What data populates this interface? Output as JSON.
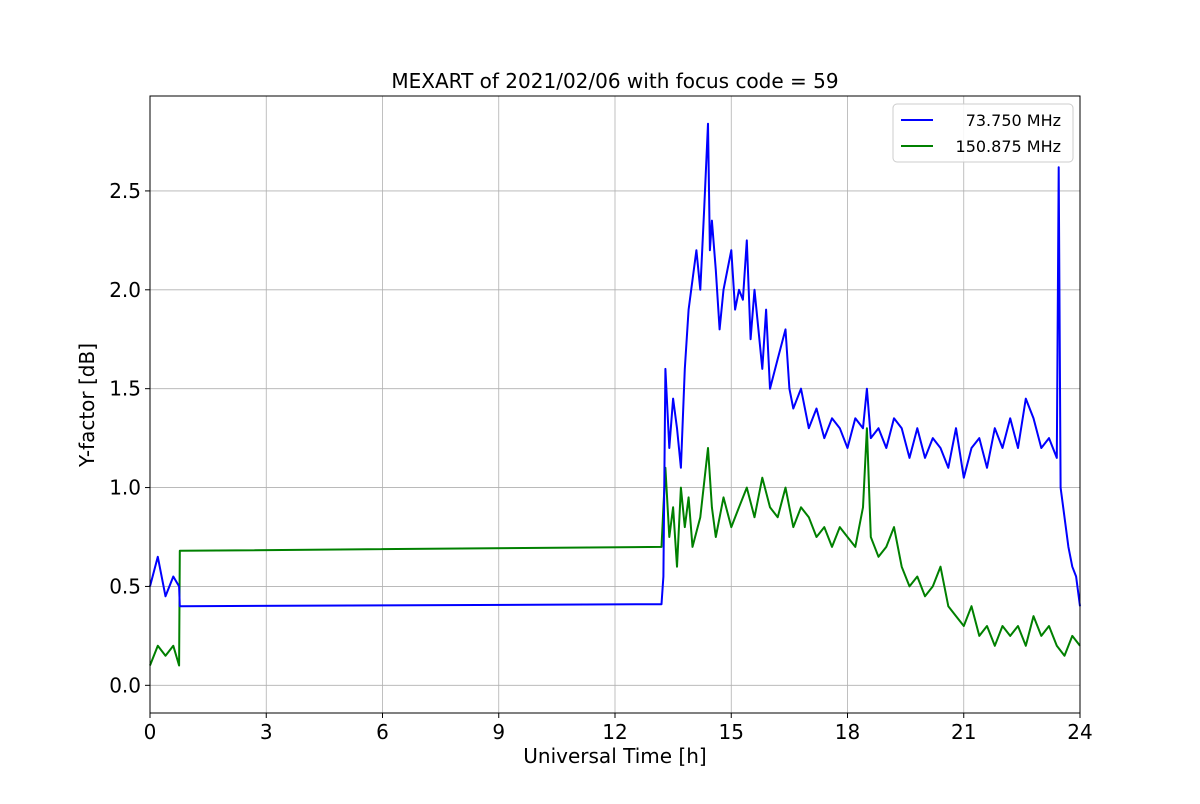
{
  "chart_data": {
    "type": "line",
    "title": "MEXART of 2021/02/06 with focus code = 59",
    "xlabel": "Universal Time [h]",
    "ylabel": "Y-factor [dB]",
    "xlim": [
      0,
      24
    ],
    "ylim": [
      -0.14,
      2.98
    ],
    "xticks": [
      0,
      3,
      6,
      9,
      12,
      15,
      18,
      21,
      24
    ],
    "yticks": [
      0.0,
      0.5,
      1.0,
      1.5,
      2.0,
      2.5
    ],
    "xtick_labels": [
      "0",
      "3",
      "6",
      "9",
      "12",
      "15",
      "18",
      "21",
      "24"
    ],
    "ytick_labels": [
      "0.0",
      "0.5",
      "1.0",
      "1.5",
      "2.0",
      "2.5"
    ],
    "grid": true,
    "legend_position": "top-right",
    "series": [
      {
        "name": "73.750 MHz",
        "color": "#0000ff",
        "x": [
          0.0,
          0.2,
          0.4,
          0.6,
          0.75,
          0.77,
          13.2,
          13.25,
          13.3,
          13.4,
          13.5,
          13.6,
          13.7,
          13.8,
          13.9,
          14.0,
          14.1,
          14.2,
          14.3,
          14.4,
          14.45,
          14.5,
          14.6,
          14.7,
          14.8,
          14.9,
          15.0,
          15.1,
          15.2,
          15.3,
          15.4,
          15.5,
          15.6,
          15.7,
          15.8,
          15.9,
          16.0,
          16.2,
          16.4,
          16.5,
          16.6,
          16.8,
          17.0,
          17.2,
          17.4,
          17.6,
          17.8,
          18.0,
          18.2,
          18.4,
          18.5,
          18.6,
          18.8,
          19.0,
          19.2,
          19.4,
          19.6,
          19.8,
          20.0,
          20.2,
          20.4,
          20.6,
          20.8,
          21.0,
          21.2,
          21.4,
          21.6,
          21.8,
          22.0,
          22.2,
          22.4,
          22.6,
          22.8,
          23.0,
          23.2,
          23.4,
          23.45,
          23.5,
          23.6,
          23.7,
          23.8,
          23.9,
          24.0
        ],
        "y": [
          0.5,
          0.65,
          0.45,
          0.55,
          0.5,
          0.4,
          0.41,
          0.55,
          1.6,
          1.2,
          1.45,
          1.3,
          1.1,
          1.6,
          1.9,
          2.05,
          2.2,
          2.0,
          2.4,
          2.84,
          2.2,
          2.35,
          2.1,
          1.8,
          2.0,
          2.1,
          2.2,
          1.9,
          2.0,
          1.95,
          2.25,
          1.75,
          2.0,
          1.8,
          1.6,
          1.9,
          1.5,
          1.65,
          1.8,
          1.5,
          1.4,
          1.5,
          1.3,
          1.4,
          1.25,
          1.35,
          1.3,
          1.2,
          1.35,
          1.3,
          1.5,
          1.25,
          1.3,
          1.2,
          1.35,
          1.3,
          1.15,
          1.3,
          1.15,
          1.25,
          1.2,
          1.1,
          1.3,
          1.05,
          1.2,
          1.25,
          1.1,
          1.3,
          1.2,
          1.35,
          1.2,
          1.45,
          1.35,
          1.2,
          1.25,
          1.15,
          2.62,
          1.0,
          0.85,
          0.7,
          0.6,
          0.55,
          0.4
        ]
      },
      {
        "name": "150.875 MHz",
        "color": "#008000",
        "x": [
          0.0,
          0.2,
          0.4,
          0.6,
          0.75,
          0.77,
          13.2,
          13.25,
          13.3,
          13.4,
          13.5,
          13.6,
          13.7,
          13.8,
          13.9,
          14.0,
          14.2,
          14.4,
          14.5,
          14.6,
          14.8,
          15.0,
          15.2,
          15.4,
          15.6,
          15.8,
          16.0,
          16.2,
          16.4,
          16.6,
          16.8,
          17.0,
          17.2,
          17.4,
          17.6,
          17.8,
          18.0,
          18.2,
          18.4,
          18.5,
          18.6,
          18.8,
          19.0,
          19.2,
          19.4,
          19.6,
          19.8,
          20.0,
          20.2,
          20.4,
          20.6,
          20.8,
          21.0,
          21.2,
          21.4,
          21.6,
          21.8,
          22.0,
          22.2,
          22.4,
          22.6,
          22.8,
          23.0,
          23.2,
          23.4,
          23.6,
          23.8,
          24.0
        ],
        "y": [
          0.1,
          0.2,
          0.15,
          0.2,
          0.1,
          0.68,
          0.7,
          0.9,
          1.1,
          0.75,
          0.9,
          0.6,
          1.0,
          0.8,
          0.95,
          0.7,
          0.85,
          1.2,
          0.9,
          0.75,
          0.95,
          0.8,
          0.9,
          1.0,
          0.85,
          1.05,
          0.9,
          0.85,
          1.0,
          0.8,
          0.9,
          0.85,
          0.75,
          0.8,
          0.7,
          0.8,
          0.75,
          0.7,
          0.9,
          1.3,
          0.75,
          0.65,
          0.7,
          0.8,
          0.6,
          0.5,
          0.55,
          0.45,
          0.5,
          0.6,
          0.4,
          0.35,
          0.3,
          0.4,
          0.25,
          0.3,
          0.2,
          0.3,
          0.25,
          0.3,
          0.2,
          0.35,
          0.25,
          0.3,
          0.2,
          0.15,
          0.25,
          0.2
        ]
      }
    ]
  }
}
